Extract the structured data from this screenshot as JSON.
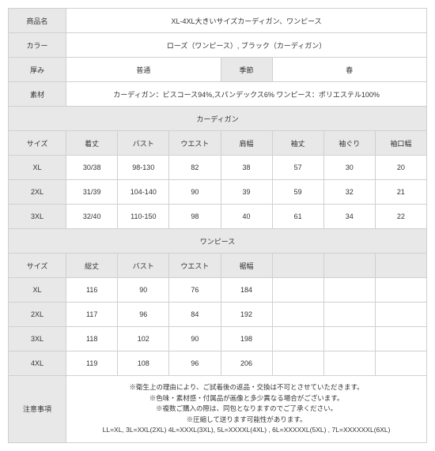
{
  "colors": {
    "header_bg": "#e8e8e8",
    "border": "#d0d0d0",
    "text": "#333333",
    "background": "#ffffff"
  },
  "info": {
    "product_name_label": "商品名",
    "product_name_value": "XL-4XL大きいサイズカーディガン、ワンピース",
    "color_label": "カラー",
    "color_value": "ローズ（ワンピース）, ブラック（カーディガン）",
    "thickness_label": "厚み",
    "thickness_value": "普通",
    "season_label": "季節",
    "season_value": "春",
    "material_label": "素材",
    "material_value": "カーディガン：ビスコース94%,スパンデックス6% ワンピース：ポリエステル100%"
  },
  "cardigan": {
    "section_title": "カーディガン",
    "headers": [
      "サイズ",
      "着丈",
      "バスト",
      "ウエスト",
      "肩幅",
      "袖丈",
      "袖ぐり",
      "袖口幅"
    ],
    "rows": [
      [
        "XL",
        "30/38",
        "98-130",
        "82",
        "38",
        "57",
        "30",
        "20"
      ],
      [
        "2XL",
        "31/39",
        "104-140",
        "90",
        "39",
        "59",
        "32",
        "21"
      ],
      [
        "3XL",
        "32/40",
        "110-150",
        "98",
        "40",
        "61",
        "34",
        "22"
      ]
    ]
  },
  "onepiece": {
    "section_title": "ワンピース",
    "headers": [
      "サイズ",
      "総丈",
      "バスト",
      "ウエスト",
      "裾幅",
      "",
      "",
      ""
    ],
    "rows": [
      [
        "XL",
        "116",
        "90",
        "76",
        "184",
        "",
        "",
        ""
      ],
      [
        "2XL",
        "117",
        "96",
        "84",
        "192",
        "",
        "",
        ""
      ],
      [
        "3XL",
        "118",
        "102",
        "90",
        "198",
        "",
        "",
        ""
      ],
      [
        "4XL",
        "119",
        "108",
        "96",
        "206",
        "",
        "",
        ""
      ]
    ]
  },
  "notes": {
    "label": "注意事項",
    "lines": [
      "※衛生上の理由により、ご試着後の返品・交換は不可とさせていただきます。",
      "※色味・素材感・付属品が画像と多少異なる場合がございます。",
      "※複数ご購入の際は、同包となりますのでご了承ください。",
      "※圧縮して送ります可能性があります。",
      "LL=XL, 3L=XXL(2XL) 4L=XXXL(3XL), 5L=XXXXL(4XL) , 6L=XXXXXL(5XL) , 7L=XXXXXXL(6XL)"
    ]
  }
}
